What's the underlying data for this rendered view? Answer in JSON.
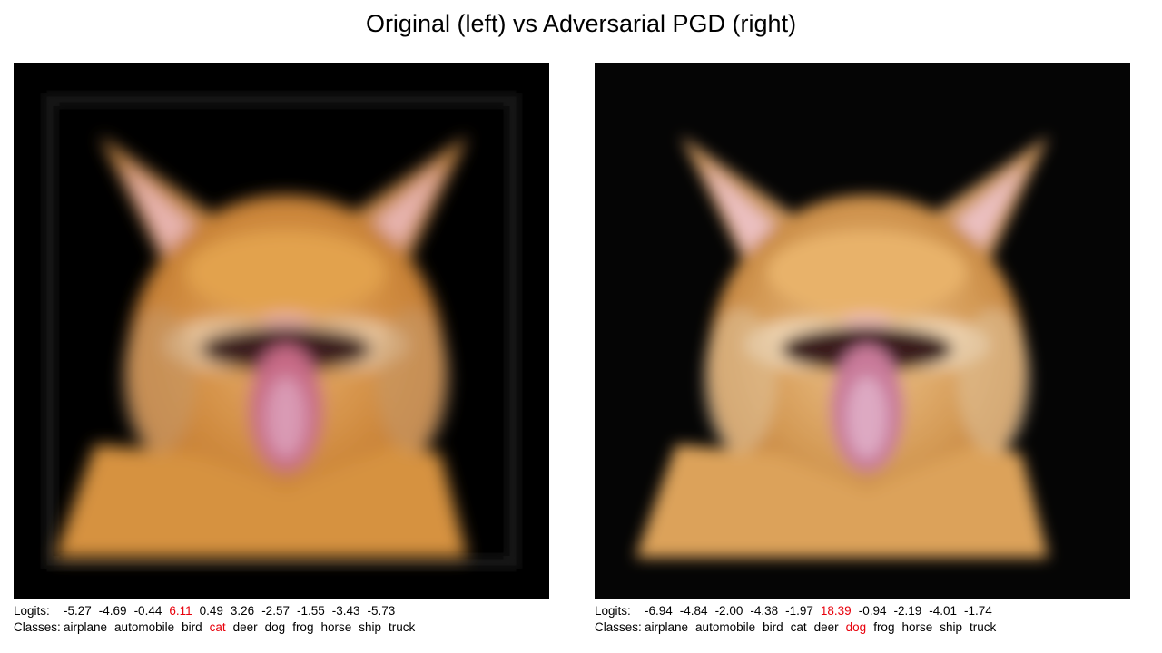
{
  "title": "Original (left) vs Adversarial PGD (right)",
  "colors": {
    "highlight": "#e8000b",
    "background": "#000000",
    "fur": "#d08a3e"
  },
  "panels": [
    {
      "id": "original",
      "logits_label": "Logits:",
      "classes_label": "Classes:",
      "logits": [
        "-5.27",
        "-4.69",
        "-0.44",
        "6.11",
        "0.49",
        "3.26",
        "-2.57",
        "-1.55",
        "-3.43",
        "-5.73"
      ],
      "classes": [
        "airplane",
        "automobile",
        "bird",
        "cat",
        "deer",
        "dog",
        "frog",
        "horse",
        "ship",
        "truck"
      ],
      "highlight_index": 3
    },
    {
      "id": "adversarial",
      "logits_label": "Logits:",
      "classes_label": "Classes:",
      "logits": [
        "-6.94",
        "-4.84",
        "-2.00",
        "-4.38",
        "-1.97",
        "18.39",
        "-0.94",
        "-2.19",
        "-4.01",
        "-1.74"
      ],
      "classes": [
        "airplane",
        "automobile",
        "bird",
        "cat",
        "deer",
        "dog",
        "frog",
        "horse",
        "ship",
        "truck"
      ],
      "highlight_index": 5
    }
  ]
}
